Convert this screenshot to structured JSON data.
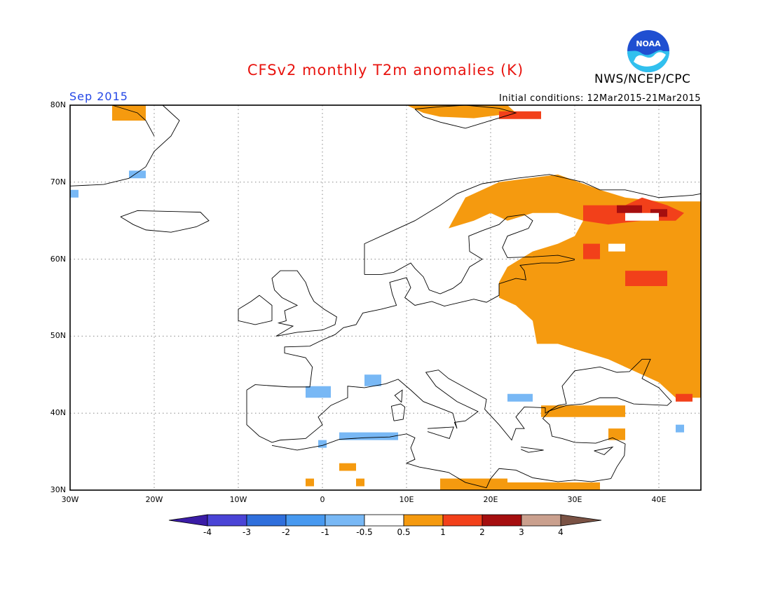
{
  "header": {
    "title": "CFSv2 monthly T2m anomalies (K)",
    "month": "Sep 2015",
    "initial_conditions": "Initial conditions: 12Mar2015-21Mar2015",
    "agency": "NWS/NCEP/CPC",
    "logo_text": "NOAA"
  },
  "map": {
    "lon_range": [
      -30,
      45
    ],
    "lat_range": [
      30,
      80
    ],
    "x_ticks": [
      "30W",
      "20W",
      "10W",
      "0",
      "10E",
      "20E",
      "30E",
      "40E"
    ],
    "y_ticks": [
      "80N",
      "70N",
      "60N",
      "50N",
      "40N",
      "30N"
    ],
    "gridlines": true
  },
  "colorbar": {
    "labels": [
      "-4",
      "-3",
      "-2",
      "-1",
      "-0.5",
      "0.5",
      "1",
      "2",
      "3",
      "4"
    ],
    "colors": [
      "#3a1ca6",
      "#4a44d6",
      "#2f6fdc",
      "#4799f0",
      "#78b8f5",
      "#ffffff",
      "#f59a0f",
      "#f2401a",
      "#a50e0f",
      "#caa08e",
      "#7a5244"
    ]
  },
  "anomaly_legend": {
    "lt_-1": "#4799f0",
    "lt_-0.5": "#78b8f5",
    "gt_0.5": "#f59a0f",
    "gt_1": "#f2401a",
    "gt_2": "#a50e0f"
  }
}
